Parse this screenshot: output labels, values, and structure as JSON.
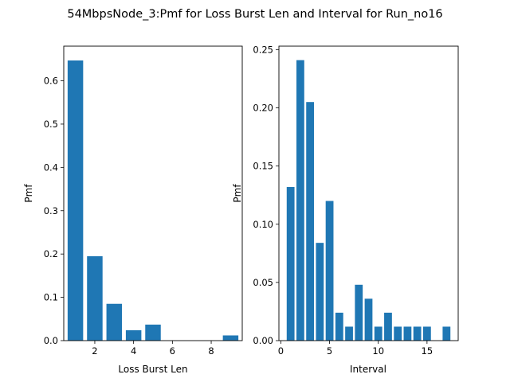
{
  "title": "54MbpsNode_3:Pmf for Loss Burst Len and Interval for Run_no16",
  "bar_color": "#1f77b4",
  "chart_data": [
    {
      "type": "bar",
      "xlabel": "Loss Burst Len",
      "ylabel": "Pmf",
      "x": [
        1,
        2,
        3,
        4,
        5,
        9
      ],
      "values": [
        0.647,
        0.195,
        0.085,
        0.024,
        0.037,
        0.012
      ],
      "xlim": [
        0.4,
        9.6
      ],
      "ylim": [
        0,
        0.68
      ],
      "xticks": [
        2,
        4,
        6,
        8
      ],
      "xtick_labels": [
        "2",
        "4",
        "6",
        "8"
      ],
      "yticks": [
        0,
        0.1,
        0.2,
        0.3,
        0.4,
        0.5,
        0.6
      ],
      "ytick_labels": [
        "0.0",
        "0.1",
        "0.2",
        "0.3",
        "0.4",
        "0.5",
        "0.6"
      ],
      "bar_width": 0.8,
      "grid": false
    },
    {
      "type": "bar",
      "xlabel": "Interval",
      "ylabel": "Pmf",
      "x": [
        1,
        2,
        3,
        4,
        5,
        6,
        7,
        8,
        9,
        10,
        11,
        12,
        13,
        14,
        15,
        17
      ],
      "values": [
        0.132,
        0.241,
        0.205,
        0.084,
        0.12,
        0.024,
        0.012,
        0.048,
        0.036,
        0.012,
        0.024,
        0.012,
        0.012,
        0.012,
        0.012,
        0.012
      ],
      "xlim": [
        -0.2,
        18.2
      ],
      "ylim": [
        0,
        0.253
      ],
      "xticks": [
        0,
        5,
        10,
        15
      ],
      "xtick_labels": [
        "0",
        "5",
        "10",
        "15"
      ],
      "yticks": [
        0,
        0.05,
        0.1,
        0.15,
        0.2,
        0.25
      ],
      "ytick_labels": [
        "0.00",
        "0.05",
        "0.10",
        "0.15",
        "0.20",
        "0.25"
      ],
      "bar_width": 0.8,
      "grid": false
    }
  ]
}
